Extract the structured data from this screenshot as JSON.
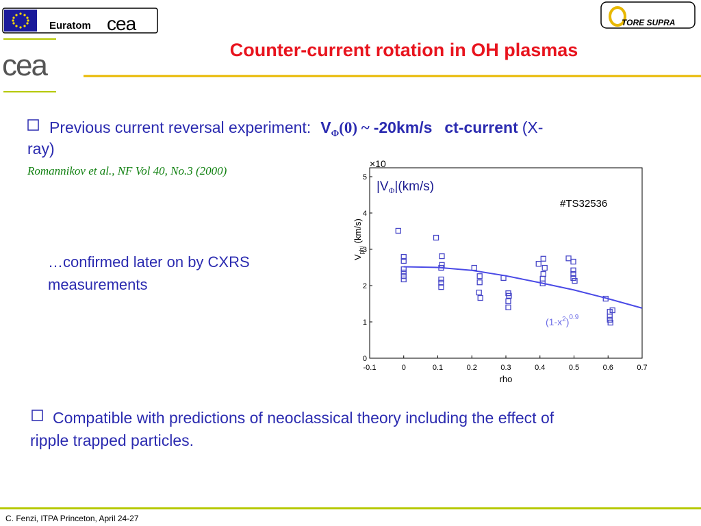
{
  "header": {
    "euratom": "Euratom",
    "cea_small": "cea",
    "cea_large": "cea",
    "tore_supra": "TORE SUPRA",
    "title": "Counter-current rotation in OH plasmas"
  },
  "bullet1": {
    "text": "Previous current reversal experiment:",
    "v": "V",
    "phi": "Φ",
    "zero": "(0) ~",
    "value": "-20km/s",
    "ct": "ct-current",
    "method_a": "(X-",
    "method_b": "ray)",
    "reference": "Romannikov et al., NF Vol 40, No.3 (2000)"
  },
  "confirmed": {
    "line1": "…confirmed later on by CXRS",
    "line2": "measurements"
  },
  "bullet2": {
    "line1": "Compatible with predictions of neoclassical theory including the effect of",
    "line2": "ripple trapped particles."
  },
  "footer": "C. Fenzi, ITPA Princeton, April 24-27",
  "chart_data": {
    "type": "scatter",
    "multiplier": "×10",
    "label_v": "|V",
    "label_phi": "Φ",
    "label_unit": "|(km/s)",
    "shot": "#TS32536",
    "fit_a": "(1-x",
    "fit_b": "2",
    "fit_c": ")",
    "fit_d": "0.9",
    "y_label_v": "V",
    "y_label_sub": "phi",
    "y_label_unit": "(km/s)",
    "x_label": "rho",
    "xlim": [
      -0.1,
      0.7
    ],
    "xticks": [
      -0.1,
      0,
      0.1,
      0.2,
      0.3,
      0.4,
      0.5,
      0.6,
      0.7
    ],
    "ylim": [
      0,
      5
    ],
    "yticks": [
      0,
      1,
      2,
      3,
      4,
      5
    ],
    "series": [
      {
        "color": "#4646c8",
        "mode": "markers",
        "x": [
          -0.016,
          0,
          0,
          0,
          0,
          0,
          0,
          0.095,
          0.112,
          0.112,
          0.11,
          0.11,
          0.11,
          0.11,
          0.207,
          0.223,
          0.223,
          0.221,
          0.225,
          0.293,
          0.307,
          0.309,
          0.307,
          0.307,
          0.396,
          0.41,
          0.414,
          0.41,
          0.408,
          0.408,
          0.484,
          0.498,
          0.498,
          0.498,
          0.498,
          0.502,
          0.593,
          0.605,
          0.605,
          0.605,
          0.607,
          0.613
        ],
        "y": [
          3.51,
          2.79,
          2.68,
          2.45,
          2.36,
          2.26,
          2.17,
          3.32,
          2.81,
          2.57,
          2.49,
          2.17,
          2.08,
          1.96,
          2.49,
          2.09,
          2.26,
          1.81,
          1.66,
          2.21,
          1.79,
          1.72,
          1.57,
          1.4,
          2.6,
          2.74,
          2.49,
          2.32,
          2.19,
          2.06,
          2.75,
          2.66,
          2.42,
          2.32,
          2.21,
          2.13,
          1.64,
          1.28,
          1.15,
          1.06,
          0.98,
          1.32
        ]
      },
      {
        "color": "#4a4ae6",
        "mode": "line",
        "x": [
          0,
          0.1,
          0.2,
          0.3,
          0.4,
          0.5,
          0.6,
          0.7
        ],
        "y": [
          2.52,
          2.5,
          2.42,
          2.27,
          2.08,
          1.88,
          1.64,
          1.38
        ]
      }
    ]
  }
}
